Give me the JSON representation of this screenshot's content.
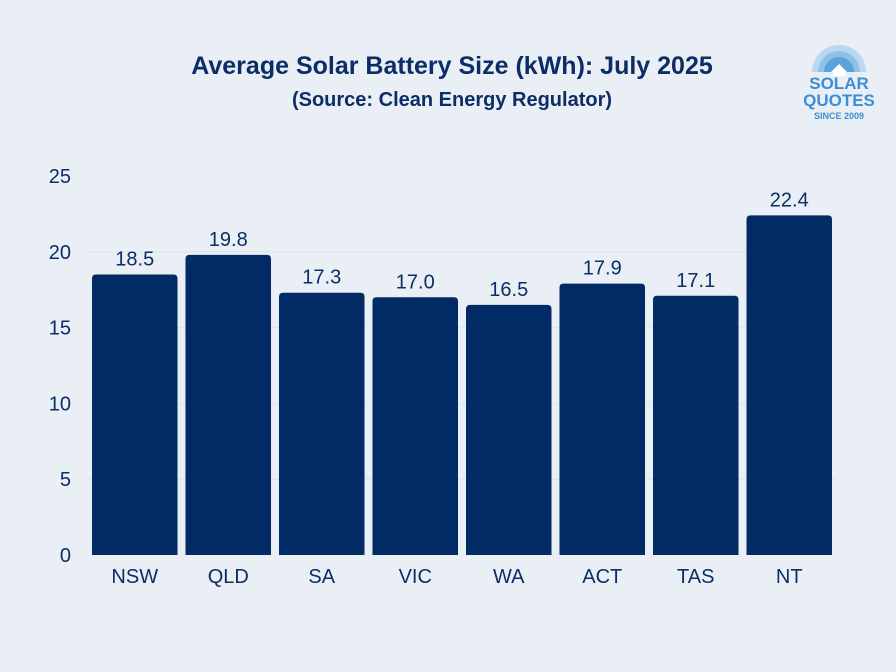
{
  "chart_data": {
    "type": "bar",
    "title": "Average Solar Battery Size (kWh): July 2025",
    "subtitle": "(Source: Clean Energy Regulator)",
    "categories": [
      "NSW",
      "QLD",
      "SA",
      "VIC",
      "WA",
      "ACT",
      "TAS",
      "NT"
    ],
    "values": [
      18.5,
      19.8,
      17.3,
      17.0,
      16.5,
      17.9,
      17.1,
      22.4
    ],
    "value_labels": [
      "18.5",
      "19.8",
      "17.3",
      "17.0",
      "16.5",
      "17.9",
      "17.1",
      "22.4"
    ],
    "xlabel": "",
    "ylabel": "",
    "ylim": [
      0,
      25
    ],
    "yticks": [
      0,
      5,
      10,
      15,
      20,
      25
    ],
    "grid": true,
    "bar_color": "#022a64"
  },
  "logo": {
    "line1": "SOLAR",
    "line2": "QUOTES",
    "line3": "SINCE 2009",
    "color": "#3b8fd6"
  }
}
